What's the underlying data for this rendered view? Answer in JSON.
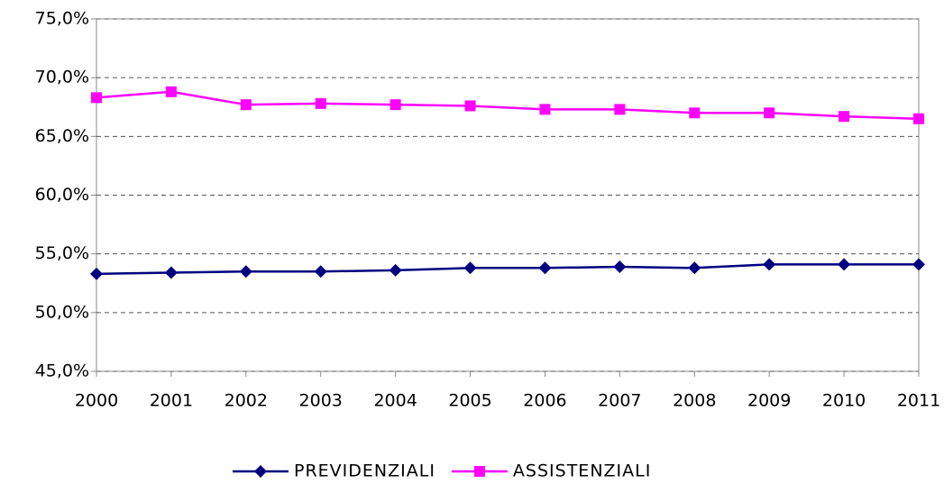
{
  "chart_data": {
    "type": "line",
    "categories": [
      "2000",
      "2001",
      "2002",
      "2003",
      "2004",
      "2005",
      "2006",
      "2007",
      "2008",
      "2009",
      "2010",
      "2011"
    ],
    "series": [
      {
        "name": "PREVIDENZIALI",
        "color": "#000080",
        "marker": "diamond",
        "values": [
          53.3,
          53.4,
          53.5,
          53.5,
          53.6,
          53.8,
          53.8,
          53.9,
          53.8,
          54.1,
          54.1,
          54.1
        ]
      },
      {
        "name": "ASSISTENZIALI",
        "color": "#ff00ff",
        "marker": "square",
        "values": [
          68.3,
          68.8,
          67.7,
          67.8,
          67.7,
          67.6,
          67.3,
          67.3,
          67.0,
          67.0,
          66.7,
          66.5
        ]
      }
    ],
    "ylim": [
      45,
      75
    ],
    "yticks": [
      {
        "value": 45,
        "label": "45,0%"
      },
      {
        "value": 50,
        "label": "50,0%"
      },
      {
        "value": 55,
        "label": "55,0%"
      },
      {
        "value": 60,
        "label": "60,0%"
      },
      {
        "value": 65,
        "label": "65,0%"
      },
      {
        "value": 70,
        "label": "70,0%"
      },
      {
        "value": 75,
        "label": "75,0%"
      }
    ],
    "grid": true,
    "legend": "bottom"
  }
}
